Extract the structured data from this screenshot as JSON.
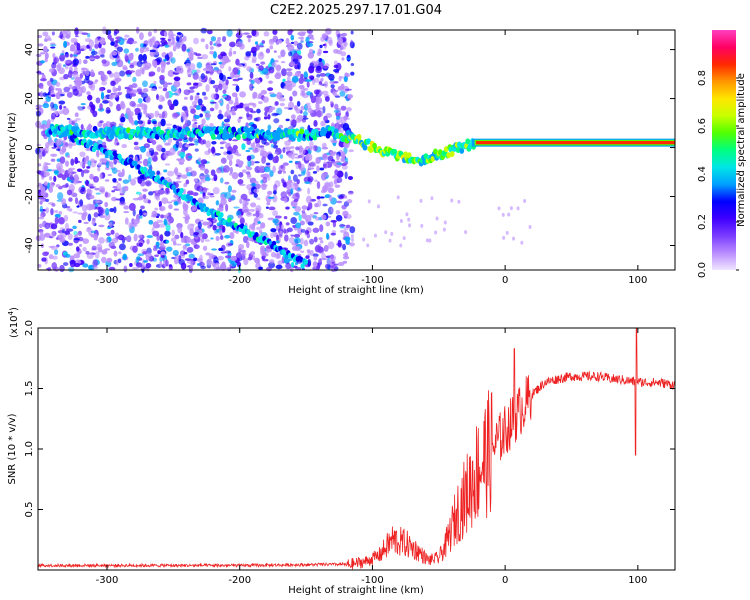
{
  "title": "C2E2.2025.297.17.01.G04",
  "chart_data": [
    {
      "type": "heatmap",
      "name": "spectrogram",
      "title": "C2E2.2025.297.17.01.G04",
      "xlabel": "Height of straight line (km)",
      "ylabel": "Frequency (Hz)",
      "xlim": [
        -352,
        128
      ],
      "ylim": [
        -50,
        48
      ],
      "xticks": [
        -300,
        -200,
        -100,
        0,
        100
      ],
      "yticks": [
        -40,
        -20,
        0,
        20,
        40
      ],
      "colorbar": {
        "label": "Normalized spectral amplitude",
        "range": [
          0,
          1
        ],
        "ticks": [
          "0.0",
          "0.2",
          "0.4",
          "0.6",
          "0.8"
        ],
        "tick_values": [
          0,
          0.2,
          0.4,
          0.6,
          0.8
        ],
        "colors": [
          "#f0e6ff",
          "#b98cff",
          "#7a3cff",
          "#3f00ff",
          "#0000ff",
          "#00a0ff",
          "#00e6e6",
          "#00ff80",
          "#50ff00",
          "#c8ff00",
          "#ffe600",
          "#ff9600",
          "#ff2800",
          "#ff0064",
          "#ff40c0"
        ]
      },
      "features": [
        {
          "name": "main-band",
          "points": [
            [
              -345,
              7
            ],
            [
              -300,
              6
            ],
            [
              -250,
              6
            ],
            [
              -200,
              6
            ],
            [
              -150,
              5
            ],
            [
              -130,
              6
            ],
            [
              -115,
              4
            ],
            [
              -95,
              -1
            ],
            [
              -80,
              -3
            ],
            [
              -65,
              -5
            ],
            [
              -50,
              -3
            ],
            [
              -35,
              0
            ],
            [
              -20,
              2
            ],
            [
              0,
              2
            ],
            [
              128,
              2
            ]
          ]
        },
        {
          "name": "lower-branch",
          "points": [
            [
              -335,
              6
            ],
            [
              -300,
              -2
            ],
            [
              -270,
              -10
            ],
            [
              -240,
              -20
            ],
            [
              -220,
              -27
            ],
            [
              -195,
              -34
            ],
            [
              -175,
              -40
            ],
            [
              -150,
              -48
            ]
          ]
        },
        {
          "name": "strong-tone",
          "points": [
            [
              -22,
              2
            ],
            [
              128,
              2
            ]
          ]
        }
      ]
    },
    {
      "type": "line",
      "name": "snr",
      "xlabel": "Height of straight line (km)",
      "ylabel": "SNR (10 * v/v)",
      "y_multiplier": "(x10",
      "y_exponent": "4",
      "y_multiplier_close": ")",
      "xlim": [
        -352,
        128
      ],
      "ylim": [
        0,
        2.0
      ],
      "xticks": [
        -300,
        -200,
        -100,
        0,
        100
      ],
      "yticks": [
        "0.5",
        "1.0",
        "1.5",
        "2.0"
      ],
      "ytick_values": [
        0.5,
        1.0,
        1.5,
        2.0
      ],
      "color": "#ee2222",
      "series": [
        {
          "name": "SNR trend",
          "x": [
            -352,
            -200,
            -120,
            -105,
            -95,
            -85,
            -75,
            -65,
            -58,
            -50,
            -45,
            -40,
            -35,
            -28,
            -20,
            -10,
            0,
            10,
            20,
            30,
            40,
            50,
            60,
            70,
            80,
            90,
            95,
            105,
            115,
            128
          ],
          "y": [
            0.03,
            0.03,
            0.04,
            0.07,
            0.12,
            0.25,
            0.22,
            0.15,
            0.08,
            0.1,
            0.2,
            0.35,
            0.5,
            0.65,
            0.85,
            1.0,
            1.15,
            1.3,
            1.45,
            1.55,
            1.58,
            1.6,
            1.6,
            1.6,
            1.58,
            1.57,
            1.56,
            1.55,
            1.55,
            1.53
          ]
        }
      ],
      "annotations": [
        {
          "x": 7,
          "y": 1.83,
          "note": "spike"
        },
        {
          "x": 99,
          "y": 2.0,
          "note": "spike"
        },
        {
          "x": 99,
          "y": 0.95,
          "note": "dip"
        }
      ]
    }
  ]
}
